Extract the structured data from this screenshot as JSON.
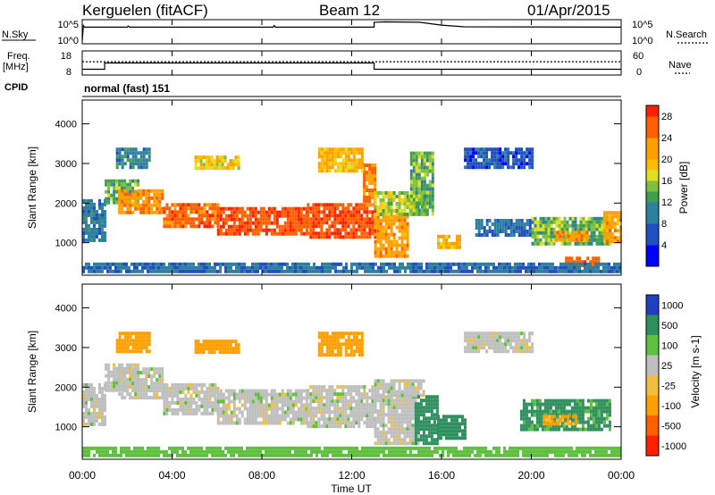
{
  "header": {
    "station": "Kerguelen (fitACF)",
    "beam": "Beam 12",
    "date": "01/Apr/2015"
  },
  "colors": {
    "frame": "#000000",
    "nave_line": "#000000",
    "velocity_ground": "#bfbfbf"
  },
  "chart_data": [
    {
      "type": "line",
      "panel": "N.Sky",
      "ylabel": "N.Sky",
      "yticks": [
        "10^5",
        "10^0"
      ],
      "right_yticks": [
        "10^5",
        "10^0"
      ],
      "right_label": "N.Search",
      "x_hours": [
        0,
        0.05,
        0.1,
        2.0,
        2.05,
        2.1,
        8.5,
        8.55,
        8.6,
        13.0,
        13.0,
        13.5,
        15.0,
        16.0,
        17.0,
        24.0
      ],
      "nsky_log": [
        0.2,
        4.0,
        3.6,
        3.6,
        3.9,
        3.6,
        3.6,
        4.0,
        3.6,
        3.6,
        4.8,
        4.9,
        4.8,
        4.1,
        3.7,
        3.6
      ],
      "nsearch": "flat (dotted)"
    },
    {
      "type": "line",
      "panel": "Freq",
      "ylabel": "Freq.",
      "yunit": "[MHz]",
      "yticks": [
        "18",
        "8"
      ],
      "right_yticks": [
        "60",
        "0"
      ],
      "right_label": "Nave",
      "x_hours": [
        0,
        1.0,
        1.0,
        13.0,
        13.0,
        24.0
      ],
      "freq_mhz": [
        10.4,
        10.4,
        13.0,
        13.0,
        10.4,
        10.4
      ],
      "nave": 33
    },
    {
      "type": "text",
      "panel": "CPID",
      "label": "CPID",
      "value": "normal (fast) 151"
    },
    {
      "type": "heatmap",
      "panel": "power",
      "ylabel": "Slant Range [km]",
      "yticks": [
        "1000",
        "2000",
        "3000",
        "4000"
      ],
      "ylim": [
        180,
        4600
      ],
      "xlim": [
        0,
        24
      ],
      "colorbar": {
        "label": "Power [dB]",
        "ticks": [
          "4",
          "8",
          "12",
          "16",
          "20",
          "24",
          "28"
        ],
        "range": [
          0,
          30
        ]
      },
      "regions": [
        {
          "x": [
            0.0,
            1.0
          ],
          "r": [
            1050,
            2100
          ],
          "v": 10
        },
        {
          "x": [
            1.0,
            2.5
          ],
          "r": [
            2000,
            2600
          ],
          "v": 14
        },
        {
          "x": [
            1.6,
            3.6
          ],
          "r": [
            1750,
            2350
          ],
          "v": 23
        },
        {
          "x": [
            3.6,
            6.0
          ],
          "r": [
            1450,
            2000
          ],
          "v": 26
        },
        {
          "x": [
            6.0,
            10.0
          ],
          "r": [
            1200,
            1900
          ],
          "v": 27
        },
        {
          "x": [
            10.0,
            13.0
          ],
          "r": [
            1150,
            2000
          ],
          "v": 27
        },
        {
          "x": [
            12.5,
            13.0
          ],
          "r": [
            2000,
            3000
          ],
          "v": 24
        },
        {
          "x": [
            13.0,
            14.5
          ],
          "r": [
            650,
            1700
          ],
          "v": 22
        },
        {
          "x": [
            13.0,
            15.3
          ],
          "r": [
            1700,
            2300
          ],
          "v": 16
        },
        {
          "x": [
            14.6,
            15.6
          ],
          "r": [
            1700,
            3300
          ],
          "v": 14
        },
        {
          "x": [
            15.8,
            16.8
          ],
          "r": [
            850,
            1200
          ],
          "v": 20
        },
        {
          "x": [
            17.5,
            20.0
          ],
          "r": [
            1150,
            1600
          ],
          "v": 9
        },
        {
          "x": [
            20.0,
            23.5
          ],
          "r": [
            950,
            1650
          ],
          "v": 14
        },
        {
          "x": [
            21.0,
            22.5
          ],
          "r": [
            1050,
            1300
          ],
          "v": 22
        },
        {
          "x": [
            21.5,
            23.0
          ],
          "r": [
            350,
            650
          ],
          "v": 27
        },
        {
          "x": [
            23.2,
            24.0
          ],
          "r": [
            1000,
            1800
          ],
          "v": 22
        },
        {
          "x": [
            1.5,
            3.0
          ],
          "r": [
            2900,
            3400
          ],
          "v": 10
        },
        {
          "x": [
            5.0,
            7.0
          ],
          "r": [
            2900,
            3200
          ],
          "v": 18
        },
        {
          "x": [
            0.0,
            24.0
          ],
          "r": [
            250,
            500
          ],
          "v": 9
        },
        {
          "x": [
            17.0,
            20.0
          ],
          "r": [
            2900,
            3400
          ],
          "v": 6
        },
        {
          "x": [
            10.5,
            12.5
          ],
          "r": [
            2800,
            3400
          ],
          "v": 20
        }
      ]
    },
    {
      "type": "heatmap",
      "panel": "velocity",
      "ylabel": "Slant Range [km]",
      "yticks": [
        "1000",
        "2000",
        "3000",
        "4000"
      ],
      "ylim": [
        180,
        4600
      ],
      "xlim": [
        0,
        24
      ],
      "xlabel": "Time UT",
      "xticks": [
        "00:00",
        "04:00",
        "08:00",
        "12:00",
        "16:00",
        "20:00",
        "00:00"
      ],
      "colorbar": {
        "label": "Velocity [m s-1]",
        "ticks": [
          "1000",
          "500",
          "100",
          "25",
          "-25",
          "-100",
          "-500",
          "-1000"
        ],
        "range": [
          -1000,
          1000
        ]
      },
      "regions": [
        {
          "x": [
            0.0,
            1.0
          ],
          "r": [
            1050,
            2100
          ],
          "v": 0
        },
        {
          "x": [
            1.0,
            2.5
          ],
          "r": [
            1900,
            2600
          ],
          "v": 0
        },
        {
          "x": [
            1.6,
            3.6
          ],
          "r": [
            1750,
            2500
          ],
          "v": 0
        },
        {
          "x": [
            3.6,
            6.0
          ],
          "r": [
            1300,
            2100
          ],
          "v": 0
        },
        {
          "x": [
            6.0,
            10.0
          ],
          "r": [
            1050,
            1950
          ],
          "v": 0
        },
        {
          "x": [
            10.0,
            13.0
          ],
          "r": [
            1050,
            2050
          ],
          "v": 0
        },
        {
          "x": [
            13.0,
            15.0
          ],
          "r": [
            600,
            1800
          ],
          "v": 0
        },
        {
          "x": [
            13.0,
            15.2
          ],
          "r": [
            1800,
            2200
          ],
          "v": 0
        },
        {
          "x": [
            14.8,
            15.8
          ],
          "r": [
            600,
            1800
          ],
          "v": 150
        },
        {
          "x": [
            15.8,
            17.0
          ],
          "r": [
            700,
            1300
          ],
          "v": 200
        },
        {
          "x": [
            19.5,
            23.5
          ],
          "r": [
            900,
            1700
          ],
          "v": 120
        },
        {
          "x": [
            20.5,
            22.0
          ],
          "r": [
            1050,
            1300
          ],
          "v": -120
        },
        {
          "x": [
            0.0,
            24.0
          ],
          "r": [
            250,
            500
          ],
          "v": 60
        },
        {
          "x": [
            1.5,
            3.0
          ],
          "r": [
            2900,
            3400
          ],
          "v": -150
        },
        {
          "x": [
            5.0,
            7.0
          ],
          "r": [
            2900,
            3200
          ],
          "v": -150
        },
        {
          "x": [
            10.5,
            12.5
          ],
          "r": [
            2800,
            3400
          ],
          "v": -200
        },
        {
          "x": [
            17.0,
            20.0
          ],
          "r": [
            2900,
            3400
          ],
          "v": 0
        }
      ]
    }
  ]
}
